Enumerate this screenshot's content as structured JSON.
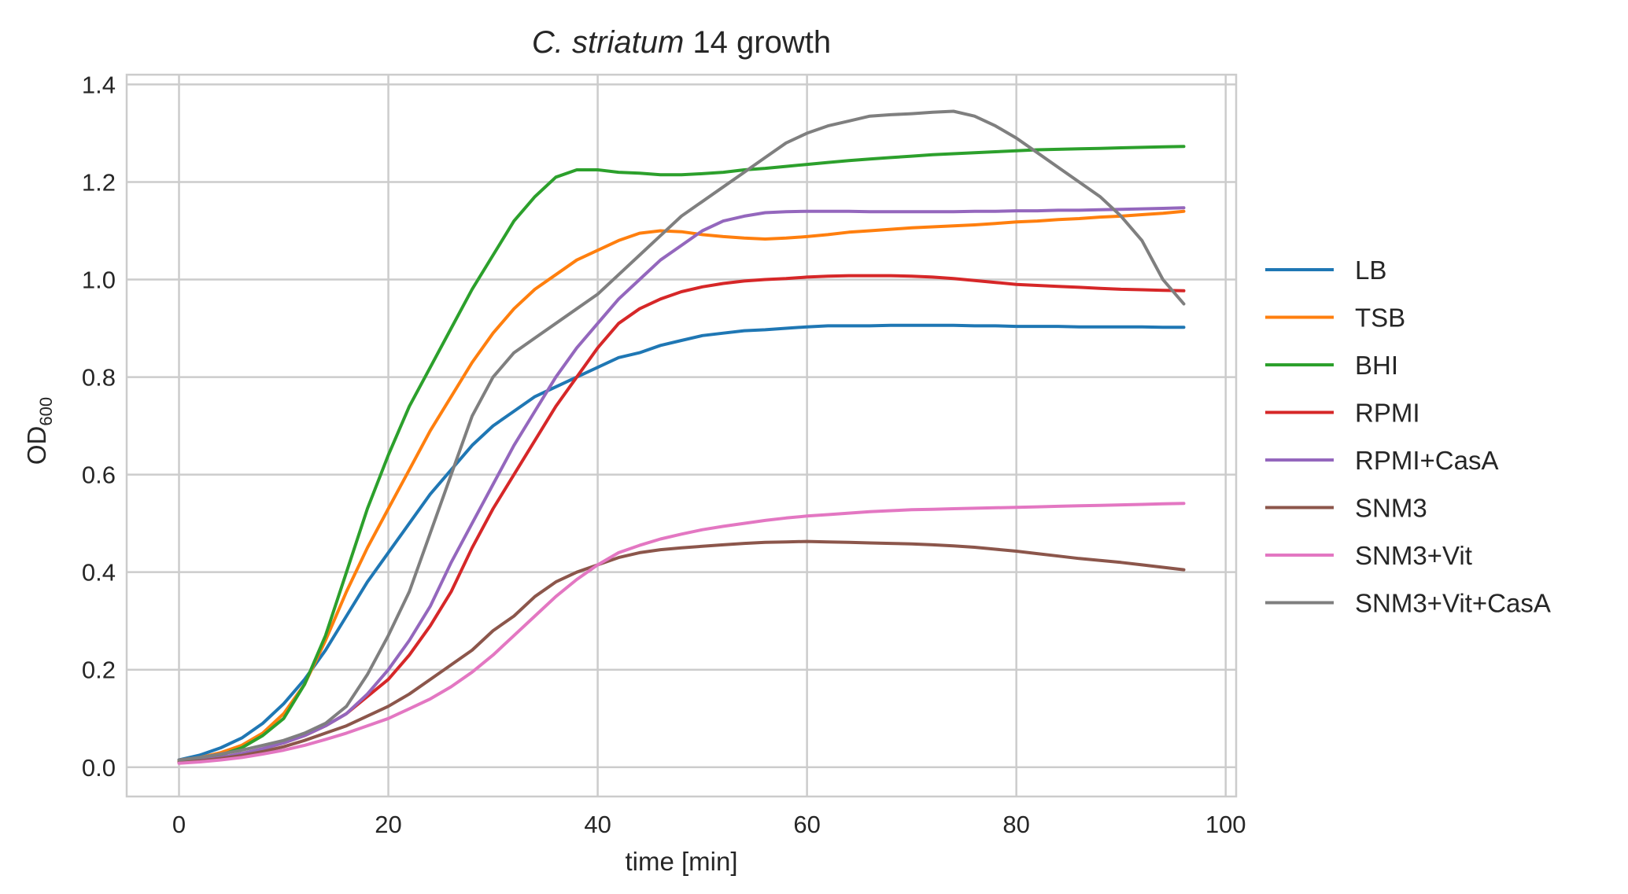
{
  "chart_data": {
    "type": "line",
    "title": {
      "italic": "C. striatum",
      "rest": " 14 growth"
    },
    "xlabel": "time [min]",
    "ylabel": {
      "main": "OD",
      "sub": "600"
    },
    "xlim": [
      -5,
      101
    ],
    "ylim": [
      -0.06,
      1.42
    ],
    "xticks": [
      0,
      20,
      40,
      60,
      80,
      100
    ],
    "yticks": [
      0.0,
      0.2,
      0.4,
      0.6,
      0.8,
      1.0,
      1.2,
      1.4
    ],
    "xtick_labels": [
      "0",
      "20",
      "40",
      "60",
      "80",
      "100"
    ],
    "ytick_labels": [
      "0.0",
      "0.2",
      "0.4",
      "0.6",
      "0.8",
      "1.0",
      "1.2",
      "1.4"
    ],
    "grid": true,
    "legend_position": "right outside",
    "x": [
      0,
      2,
      4,
      6,
      8,
      10,
      12,
      14,
      16,
      18,
      20,
      22,
      24,
      26,
      28,
      30,
      32,
      34,
      36,
      38,
      40,
      42,
      44,
      46,
      48,
      50,
      52,
      54,
      56,
      58,
      60,
      62,
      64,
      66,
      68,
      70,
      72,
      74,
      76,
      78,
      80,
      82,
      84,
      86,
      88,
      90,
      92,
      94,
      96
    ],
    "series": [
      {
        "name": "LB",
        "color": "#1f77b4",
        "values": [
          0.015,
          0.025,
          0.04,
          0.06,
          0.09,
          0.13,
          0.18,
          0.24,
          0.31,
          0.38,
          0.44,
          0.5,
          0.56,
          0.61,
          0.66,
          0.7,
          0.73,
          0.76,
          0.78,
          0.8,
          0.82,
          0.84,
          0.85,
          0.865,
          0.875,
          0.885,
          0.89,
          0.895,
          0.897,
          0.9,
          0.903,
          0.905,
          0.905,
          0.905,
          0.906,
          0.906,
          0.906,
          0.906,
          0.905,
          0.905,
          0.904,
          0.904,
          0.904,
          0.903,
          0.903,
          0.903,
          0.903,
          0.902,
          0.902
        ]
      },
      {
        "name": "TSB",
        "color": "#ff7f0e",
        "values": [
          0.012,
          0.02,
          0.03,
          0.045,
          0.07,
          0.11,
          0.17,
          0.26,
          0.36,
          0.45,
          0.53,
          0.61,
          0.69,
          0.76,
          0.83,
          0.89,
          0.94,
          0.98,
          1.01,
          1.04,
          1.06,
          1.08,
          1.095,
          1.1,
          1.098,
          1.092,
          1.088,
          1.085,
          1.083,
          1.085,
          1.088,
          1.092,
          1.097,
          1.1,
          1.103,
          1.106,
          1.108,
          1.11,
          1.112,
          1.115,
          1.118,
          1.12,
          1.123,
          1.125,
          1.128,
          1.13,
          1.133,
          1.136,
          1.14
        ]
      },
      {
        "name": "BHI",
        "color": "#2ca02c",
        "values": [
          0.01,
          0.015,
          0.025,
          0.04,
          0.065,
          0.1,
          0.17,
          0.27,
          0.4,
          0.53,
          0.64,
          0.74,
          0.82,
          0.9,
          0.98,
          1.05,
          1.12,
          1.17,
          1.21,
          1.225,
          1.225,
          1.22,
          1.218,
          1.215,
          1.215,
          1.217,
          1.22,
          1.225,
          1.228,
          1.232,
          1.236,
          1.24,
          1.244,
          1.247,
          1.25,
          1.253,
          1.256,
          1.258,
          1.26,
          1.262,
          1.264,
          1.266,
          1.267,
          1.268,
          1.269,
          1.27,
          1.271,
          1.272,
          1.273
        ]
      },
      {
        "name": "RPMI",
        "color": "#d62728",
        "values": [
          0.01,
          0.014,
          0.02,
          0.028,
          0.038,
          0.05,
          0.065,
          0.085,
          0.11,
          0.145,
          0.18,
          0.23,
          0.29,
          0.36,
          0.45,
          0.53,
          0.6,
          0.67,
          0.74,
          0.8,
          0.86,
          0.91,
          0.94,
          0.96,
          0.975,
          0.985,
          0.992,
          0.997,
          1.0,
          1.002,
          1.005,
          1.007,
          1.008,
          1.008,
          1.008,
          1.007,
          1.005,
          1.002,
          0.998,
          0.994,
          0.99,
          0.988,
          0.986,
          0.984,
          0.982,
          0.98,
          0.979,
          0.978,
          0.977
        ]
      },
      {
        "name": "RPMI+CasA",
        "color": "#9467bd",
        "values": [
          0.01,
          0.014,
          0.02,
          0.028,
          0.038,
          0.05,
          0.065,
          0.085,
          0.11,
          0.15,
          0.2,
          0.26,
          0.33,
          0.42,
          0.5,
          0.58,
          0.66,
          0.73,
          0.8,
          0.86,
          0.91,
          0.96,
          1.0,
          1.04,
          1.07,
          1.1,
          1.12,
          1.13,
          1.137,
          1.139,
          1.14,
          1.14,
          1.14,
          1.139,
          1.139,
          1.139,
          1.139,
          1.139,
          1.14,
          1.14,
          1.141,
          1.141,
          1.142,
          1.142,
          1.143,
          1.144,
          1.145,
          1.146,
          1.147
        ]
      },
      {
        "name": "SNM3",
        "color": "#8c564b",
        "values": [
          0.01,
          0.013,
          0.018,
          0.024,
          0.032,
          0.042,
          0.055,
          0.07,
          0.085,
          0.105,
          0.125,
          0.15,
          0.18,
          0.21,
          0.24,
          0.28,
          0.31,
          0.35,
          0.38,
          0.4,
          0.415,
          0.43,
          0.44,
          0.446,
          0.45,
          0.453,
          0.456,
          0.459,
          0.461,
          0.462,
          0.463,
          0.462,
          0.461,
          0.46,
          0.459,
          0.458,
          0.456,
          0.454,
          0.451,
          0.447,
          0.443,
          0.438,
          0.433,
          0.428,
          0.424,
          0.42,
          0.415,
          0.41,
          0.405
        ]
      },
      {
        "name": "SNM3+Vit",
        "color": "#e377c2",
        "values": [
          0.008,
          0.011,
          0.015,
          0.02,
          0.027,
          0.035,
          0.045,
          0.057,
          0.07,
          0.085,
          0.1,
          0.12,
          0.14,
          0.165,
          0.195,
          0.23,
          0.27,
          0.31,
          0.35,
          0.385,
          0.415,
          0.44,
          0.455,
          0.468,
          0.478,
          0.487,
          0.494,
          0.5,
          0.506,
          0.511,
          0.515,
          0.518,
          0.521,
          0.524,
          0.526,
          0.528,
          0.529,
          0.53,
          0.531,
          0.532,
          0.533,
          0.534,
          0.535,
          0.536,
          0.537,
          0.538,
          0.539,
          0.54,
          0.541
        ]
      },
      {
        "name": "SNM3+Vit+CasA",
        "color": "#7f7f7f",
        "values": [
          0.015,
          0.02,
          0.027,
          0.035,
          0.045,
          0.055,
          0.07,
          0.09,
          0.125,
          0.19,
          0.27,
          0.36,
          0.48,
          0.6,
          0.72,
          0.8,
          0.85,
          0.88,
          0.91,
          0.94,
          0.97,
          1.01,
          1.05,
          1.09,
          1.13,
          1.16,
          1.19,
          1.22,
          1.25,
          1.28,
          1.3,
          1.315,
          1.325,
          1.335,
          1.338,
          1.34,
          1.343,
          1.345,
          1.335,
          1.315,
          1.29,
          1.26,
          1.23,
          1.2,
          1.17,
          1.13,
          1.08,
          1.0,
          0.95
        ]
      }
    ]
  }
}
